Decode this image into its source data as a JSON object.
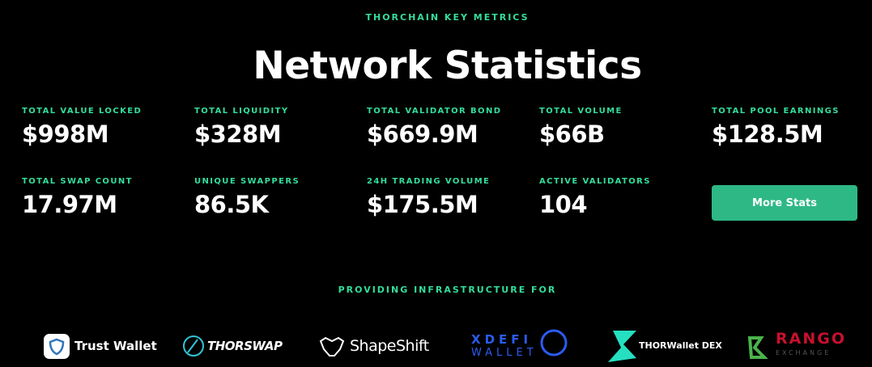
{
  "header": {
    "eyebrow": "THORCHAIN KEY METRICS",
    "title": "Network Statistics"
  },
  "stats": [
    {
      "label": "TOTAL VALUE LOCKED",
      "value": "$998M"
    },
    {
      "label": "TOTAL LIQUIDITY",
      "value": "$328M"
    },
    {
      "label": "TOTAL VALIDATOR BOND",
      "value": "$669.9M"
    },
    {
      "label": "TOTAL VOLUME",
      "value": "$66B"
    },
    {
      "label": "TOTAL POOL EARNINGS",
      "value": "$128.5M"
    },
    {
      "label": "TOTAL SWAP COUNT",
      "value": "17.97M"
    },
    {
      "label": "UNIQUE SWAPPERS",
      "value": "86.5K"
    },
    {
      "label": "24H TRADING VOLUME",
      "value": "$175.5M"
    },
    {
      "label": "ACTIVE VALIDATORS",
      "value": "104"
    }
  ],
  "button": {
    "label": "More Stats"
  },
  "partners": {
    "eyebrow": "PROVIDING INFRASTRUCTURE FOR",
    "logos": [
      "Trust Wallet",
      "THORSWAP",
      "ShapeShift",
      "XDEFI",
      "WALLET",
      "THORWallet DEX",
      "RANGO",
      "EXCHANGE"
    ]
  }
}
